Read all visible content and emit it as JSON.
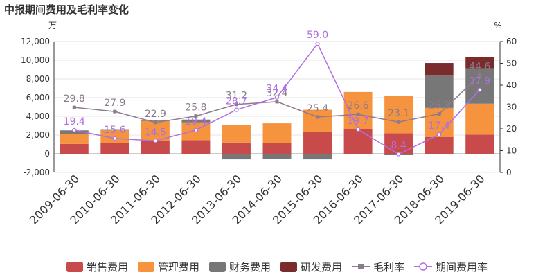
{
  "title": "中报期间费用及毛利率变化",
  "chart_data": {
    "type": "bar+line",
    "categories": [
      "2009-06-30",
      "2010-06-30",
      "2011-06-30",
      "2012-06-30",
      "2013-06-30",
      "2014-06-30",
      "2015-06-30",
      "2016-06-30",
      "2017-06-30",
      "2018-06-30",
      "2019-06-30"
    ],
    "y_left": {
      "unit": "万",
      "min": -2000,
      "max": 12000,
      "ticks": [
        -2000,
        0,
        2000,
        4000,
        6000,
        8000,
        10000,
        12000
      ]
    },
    "y_right": {
      "unit": "%",
      "min": 0,
      "max": 60,
      "ticks": [
        0,
        10,
        20,
        30,
        40,
        50,
        60
      ]
    },
    "bar_series": [
      {
        "name": "销售费用",
        "color": "#c94a4a",
        "values": [
          1050,
          1150,
          1350,
          1450,
          1200,
          1150,
          2300,
          2650,
          2200,
          1800,
          2050
        ]
      },
      {
        "name": "管理费用",
        "color": "#f5933f",
        "values": [
          1100,
          1350,
          2150,
          1900,
          1850,
          2100,
          2400,
          3950,
          4000,
          3100,
          3300
        ]
      },
      {
        "name": "财务费用",
        "color": "#777777",
        "values": [
          350,
          50,
          80,
          300,
          -600,
          -550,
          -600,
          0,
          -150,
          3450,
          3800
        ]
      },
      {
        "name": "研发费用",
        "color": "#7a2b2b",
        "values": [
          0,
          0,
          0,
          0,
          0,
          0,
          0,
          0,
          0,
          1350,
          1150
        ]
      }
    ],
    "line_series": [
      {
        "name": "毛利率",
        "color": "#8c7b8c",
        "marker": "square",
        "values": [
          29.8,
          27.9,
          22.9,
          25.8,
          31.2,
          32.4,
          25.4,
          26.6,
          23.1,
          26.8,
          44.6
        ]
      },
      {
        "name": "期间费用率",
        "color": "#b06fe0",
        "marker": "circle",
        "values": [
          19.4,
          15.6,
          14.5,
          19.4,
          28.7,
          34.4,
          59.0,
          19.7,
          8.4,
          17.4,
          37.9
        ]
      }
    ]
  }
}
